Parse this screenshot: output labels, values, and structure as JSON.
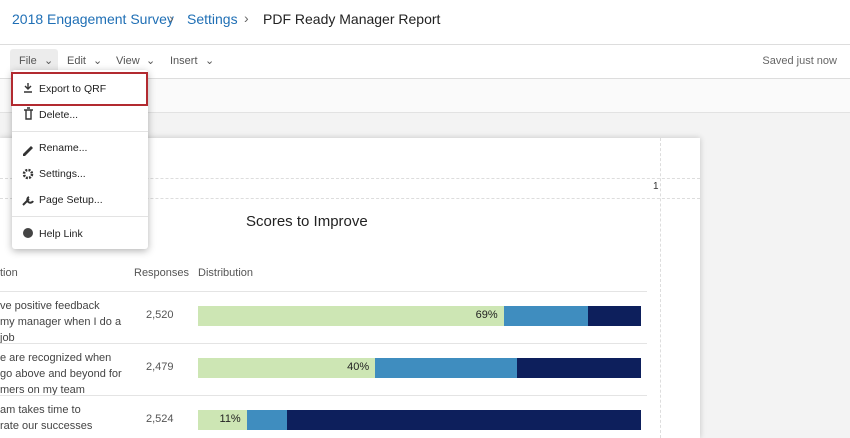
{
  "breadcrumb": [
    "2018 Engagement Survey",
    "Settings",
    "PDF Ready Manager Report"
  ],
  "menubar": {
    "items": [
      "File",
      "Edit",
      "View",
      "Insert"
    ],
    "status": "Saved just now"
  },
  "file_menu": {
    "items": [
      "Export to QRF",
      "Delete...",
      "Rename...",
      "Settings...",
      "Page Setup...",
      "Help Link"
    ]
  },
  "report": {
    "page_number": 1,
    "title": "Scores to Improve",
    "table": {
      "headers": [
        "tion",
        "Responses",
        "Distribution"
      ],
      "segment_colors": [
        "#cde6b4",
        "#3f8dbf",
        "#0d1f5c"
      ],
      "rows": [
        {
          "question": [
            "ve positive feedback",
            "my manager when I do a",
            "job"
          ],
          "responses": "2,520",
          "distribution": {
            "values": [
              69,
              19,
              12
            ],
            "value_label": "69%"
          }
        },
        {
          "question": [
            "e are recognized when",
            "go above and beyond for",
            "mers on my team"
          ],
          "responses": "2,479",
          "distribution": {
            "values": [
              40,
              32,
              28
            ],
            "value_label": "40%"
          }
        },
        {
          "question": [
            "am takes time to",
            "rate our successes"
          ],
          "responses": "2,524",
          "distribution": {
            "values": [
              11,
              9,
              80
            ],
            "value_label": "11%"
          }
        }
      ]
    }
  }
}
